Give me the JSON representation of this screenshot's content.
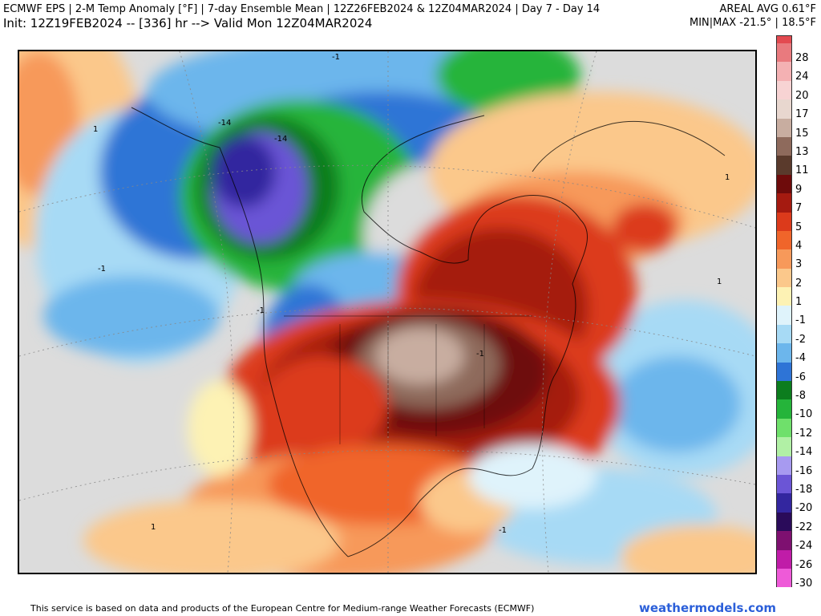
{
  "header": {
    "title": "ECMWF EPS | 2-M Temp Anomaly [°F] | 7-day Ensemble Mean | 12Z26FEB2024 & 12Z04MAR2024 | Day 7 - Day 14",
    "init": "Init: 12Z19FEB2024 -- [336] hr --> Valid Mon 12Z04MAR2024",
    "areal_avg": "AREAL AVG 0.61°F",
    "minmax": "MIN|MAX -21.5° | 18.5°F"
  },
  "colorbar": {
    "entries": [
      {
        "label": "28",
        "color": "#e97a7e"
      },
      {
        "label": "24",
        "color": "#f4b1b3"
      },
      {
        "label": "20",
        "color": "#f7d3d3"
      },
      {
        "label": "17",
        "color": "#e8d7cf"
      },
      {
        "label": "15",
        "color": "#c8ada0"
      },
      {
        "label": "13",
        "color": "#8e6a5c"
      },
      {
        "label": "11",
        "color": "#5a3a2c"
      },
      {
        "label": "9",
        "color": "#6e0b0b"
      },
      {
        "label": "7",
        "color": "#a51a10"
      },
      {
        "label": "5",
        "color": "#dc3a1b"
      },
      {
        "label": "4",
        "color": "#f0652a"
      },
      {
        "label": "3",
        "color": "#f7995a"
      },
      {
        "label": "2",
        "color": "#fbc88b"
      },
      {
        "label": "1",
        "color": "#fdf2b4"
      },
      {
        "label": "-1",
        "color": "#dff3fb"
      },
      {
        "label": "-2",
        "color": "#a7daf5"
      },
      {
        "label": "-4",
        "color": "#6cb6ec"
      },
      {
        "label": "-6",
        "color": "#2e74d6"
      },
      {
        "label": "-8",
        "color": "#0c7d1e"
      },
      {
        "label": "-10",
        "color": "#25b43a"
      },
      {
        "label": "-12",
        "color": "#6fe06b"
      },
      {
        "label": "-14",
        "color": "#b1f0a5"
      },
      {
        "label": "-16",
        "color": "#a79af0"
      },
      {
        "label": "-18",
        "color": "#6b55d6"
      },
      {
        "label": "-20",
        "color": "#33269f"
      },
      {
        "label": "-22",
        "color": "#2a0b5a"
      },
      {
        "label": "-24",
        "color": "#7e1070"
      },
      {
        "label": "-26",
        "color": "#c01ca8"
      },
      {
        "label": "-30",
        "color": "#ee5ad8"
      }
    ],
    "top_color": "#e34a50"
  },
  "map": {
    "contour_labels": [
      "-1",
      "-14",
      "-14",
      "1",
      "1",
      "-1",
      "-1",
      "1",
      "-1",
      "1",
      "-1"
    ]
  },
  "footer": {
    "attribution": "This service is based on data and products of the European Centre for Medium-range Weather Forecasts (ECMWF)",
    "brand": "weathermodels.com"
  }
}
